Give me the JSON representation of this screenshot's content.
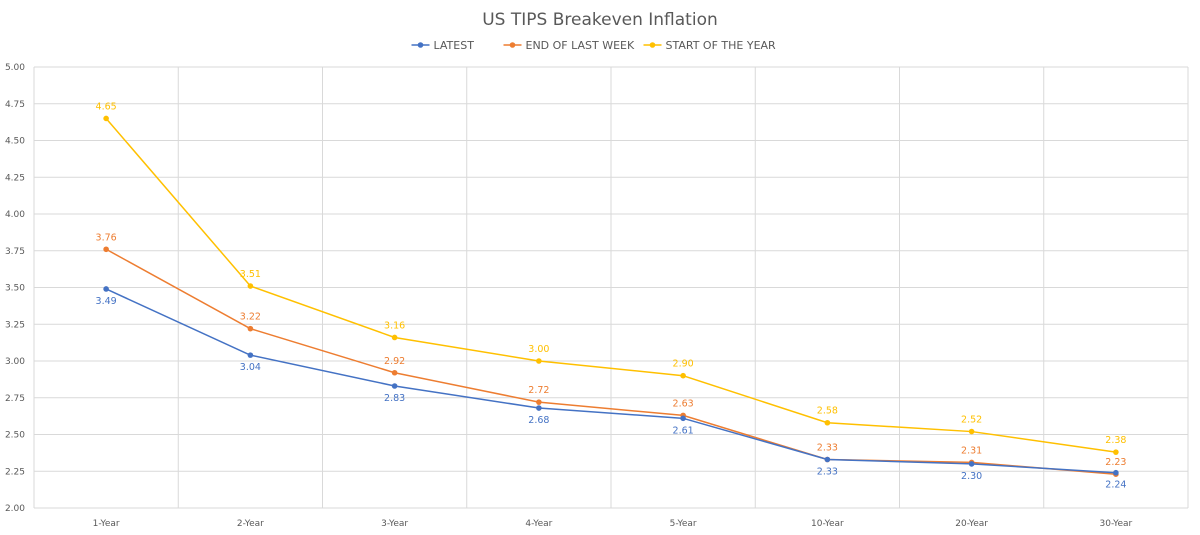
{
  "chart_data": {
    "type": "line",
    "title": "US TIPS Breakeven Inflation",
    "categories": [
      "1-Year",
      "2-Year",
      "3-Year",
      "4-Year",
      "5-Year",
      "10-Year",
      "20-Year",
      "30-Year"
    ],
    "ylim": [
      2.0,
      5.0
    ],
    "yticks": [
      "2.00",
      "2.25",
      "2.50",
      "2.75",
      "3.00",
      "3.25",
      "3.50",
      "3.75",
      "4.00",
      "4.25",
      "4.50",
      "4.75",
      "5.00"
    ],
    "grid": true,
    "legend_position": "top",
    "series": [
      {
        "name": "LATEST",
        "color": "#4472c4",
        "values": [
          3.49,
          3.04,
          2.83,
          2.68,
          2.61,
          2.33,
          2.3,
          2.24
        ],
        "labels": [
          "3.49",
          "3.04",
          "2.83",
          "2.68",
          "2.61",
          "2.33",
          "2.30",
          "2.24"
        ],
        "label_position": "below"
      },
      {
        "name": "END OF LAST WEEK",
        "color": "#ed7d31",
        "values": [
          3.76,
          3.22,
          2.92,
          2.72,
          2.63,
          2.33,
          2.31,
          2.23
        ],
        "labels": [
          "3.76",
          "3.22",
          "2.92",
          "2.72",
          "2.63",
          "2.33",
          "2.31",
          "2.23"
        ],
        "label_position": "above"
      },
      {
        "name": "START OF THE YEAR",
        "color": "#ffc000",
        "values": [
          4.65,
          3.51,
          3.16,
          3.0,
          2.9,
          2.58,
          2.52,
          2.38
        ],
        "labels": [
          "4.65",
          "3.51",
          "3.16",
          "3.00",
          "2.90",
          "2.58",
          "2.52",
          "2.38"
        ],
        "label_position": "above"
      }
    ]
  }
}
